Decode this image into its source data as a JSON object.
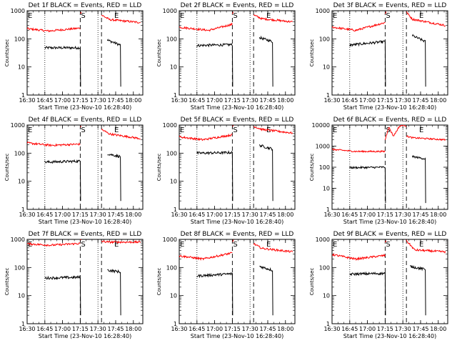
{
  "figure": {
    "ylabel": "Counts/sec",
    "xlabel": "Start Time (23-Nov-10 16:28:40)"
  },
  "chart_data": [
    {
      "type": "line",
      "title": "Det 1f BLACK = Events, RED = LLD",
      "xlabel": "Start Time (23-Nov-10 16:28:40)",
      "ylabel": "Counts/sec",
      "yscale": "log",
      "ylim": [
        1,
        1000
      ],
      "xlim": [
        "16:30",
        "18:08"
      ],
      "xticks": [
        "16:30",
        "16:45",
        "17:00",
        "17:15",
        "17:30",
        "17:45",
        "18:00"
      ],
      "yticks": [
        "1",
        "10",
        "100",
        "1000"
      ],
      "vlines_dotted": [
        "16:45",
        "17:30"
      ],
      "vlines_dashed": [
        "17:15",
        "17:33"
      ],
      "markers": {
        "S": "17:15",
        "E": "17:45"
      },
      "series": [
        {
          "name": "Events",
          "color": "#000000",
          "segments": [
            {
              "x": [
                "16:45",
                "17:15"
              ],
              "y": [
                48,
                48
              ]
            },
            {
              "x": [
                "17:38",
                "17:49"
              ],
              "y": [
                90,
                60
              ]
            }
          ]
        },
        {
          "name": "LLD",
          "color": "#ff0000",
          "segments": [
            {
              "x": [
                "16:30",
                "16:48",
                "17:15"
              ],
              "y": [
                230,
                190,
                240
              ]
            },
            {
              "x": [
                "17:15",
                "17:16"
              ],
              "y": [
                800,
                950
              ]
            },
            {
              "x": [
                "17:33",
                "17:40",
                "18:06"
              ],
              "y": [
                700,
                480,
                380
              ]
            }
          ]
        }
      ]
    },
    {
      "type": "line",
      "title": "Det 2f BLACK = Events, RED = LLD",
      "xlabel": "Start Time (23-Nov-10 16:28:40)",
      "ylabel": "Counts/sec",
      "yscale": "log",
      "ylim": [
        1,
        1000
      ],
      "xlim": [
        "16:30",
        "18:08"
      ],
      "xticks": [
        "16:30",
        "16:45",
        "17:00",
        "17:15",
        "17:30",
        "17:45",
        "18:00"
      ],
      "yticks": [
        "1",
        "10",
        "100",
        "1000"
      ],
      "vlines_dotted": [
        "16:45",
        "17:30"
      ],
      "vlines_dashed": [
        "17:15",
        "17:33"
      ],
      "markers": {
        "S": "17:15",
        "E": "17:45"
      },
      "series": [
        {
          "name": "Events",
          "color": "#000000",
          "segments": [
            {
              "x": [
                "16:45",
                "17:15"
              ],
              "y": [
                58,
                62
              ]
            },
            {
              "x": [
                "17:38",
                "17:49"
              ],
              "y": [
                110,
                80
              ]
            }
          ]
        },
        {
          "name": "LLD",
          "color": "#ff0000",
          "segments": [
            {
              "x": [
                "16:30",
                "16:55",
                "17:15"
              ],
              "y": [
                260,
                200,
                330
              ]
            },
            {
              "x": [
                "17:15",
                "17:16"
              ],
              "y": [
                800,
                950
              ]
            },
            {
              "x": [
                "17:33",
                "17:40",
                "18:06"
              ],
              "y": [
                700,
                520,
                400
              ]
            }
          ]
        }
      ]
    },
    {
      "type": "line",
      "title": "Det 3f BLACK = Events, RED = LLD",
      "xlabel": "Start Time (23-Nov-10 16:28:40)",
      "ylabel": "Counts/sec",
      "yscale": "log",
      "ylim": [
        1,
        1000
      ],
      "xlim": [
        "16:30",
        "18:08"
      ],
      "xticks": [
        "16:30",
        "16:45",
        "17:00",
        "17:15",
        "17:30",
        "17:45",
        "18:00"
      ],
      "yticks": [
        "1",
        "10",
        "100",
        "1000"
      ],
      "vlines_dotted": [
        "16:45",
        "17:30"
      ],
      "vlines_dashed": [
        "17:15",
        "17:33"
      ],
      "markers": {
        "S": "17:15",
        "E": "17:45"
      },
      "series": [
        {
          "name": "Events",
          "color": "#000000",
          "segments": [
            {
              "x": [
                "16:45",
                "17:15"
              ],
              "y": [
                60,
                80
              ]
            },
            {
              "x": [
                "17:38",
                "17:49"
              ],
              "y": [
                130,
                80
              ]
            }
          ]
        },
        {
          "name": "LLD",
          "color": "#ff0000",
          "segments": [
            {
              "x": [
                "16:30",
                "16:50",
                "17:15"
              ],
              "y": [
                260,
                200,
                380
              ]
            },
            {
              "x": [
                "17:15",
                "17:16"
              ],
              "y": [
                800,
                950
              ]
            },
            {
              "x": [
                "17:33",
                "17:38",
                "18:06"
              ],
              "y": [
                900,
                500,
                300
              ]
            }
          ]
        }
      ]
    },
    {
      "type": "line",
      "title": "Det 4f BLACK = Events, RED = LLD",
      "xlabel": "Start Time (23-Nov-10 16:28:40)",
      "ylabel": "Counts/sec",
      "yscale": "log",
      "ylim": [
        1,
        1000
      ],
      "xlim": [
        "16:30",
        "18:08"
      ],
      "xticks": [
        "16:30",
        "16:45",
        "17:00",
        "17:15",
        "17:30",
        "17:45",
        "18:00"
      ],
      "yticks": [
        "1",
        "10",
        "100",
        "1000"
      ],
      "vlines_dotted": [
        "16:45",
        "17:30"
      ],
      "vlines_dashed": [
        "17:15",
        "17:33"
      ],
      "markers": {
        "S": "17:15",
        "E": "17:45"
      },
      "series": [
        {
          "name": "Events",
          "color": "#000000",
          "segments": [
            {
              "x": [
                "16:45",
                "17:15"
              ],
              "y": [
                48,
                52
              ]
            },
            {
              "x": [
                "17:38",
                "17:49"
              ],
              "y": [
                95,
                75
              ]
            }
          ]
        },
        {
          "name": "LLD",
          "color": "#ff0000",
          "segments": [
            {
              "x": [
                "16:30",
                "16:50",
                "17:15"
              ],
              "y": [
                230,
                190,
                210
              ]
            },
            {
              "x": [
                "17:15",
                "17:16"
              ],
              "y": [
                800,
                950
              ]
            },
            {
              "x": [
                "17:33",
                "17:40",
                "18:06"
              ],
              "y": [
                700,
                480,
                330
              ]
            }
          ]
        }
      ]
    },
    {
      "type": "line",
      "title": "Det 5f BLACK = Events, RED = LLD",
      "xlabel": "Start Time (23-Nov-10 16:28:40)",
      "ylabel": "Counts/sec",
      "yscale": "log",
      "ylim": [
        1,
        1000
      ],
      "xlim": [
        "16:30",
        "18:08"
      ],
      "xticks": [
        "16:30",
        "16:45",
        "17:00",
        "17:15",
        "17:30",
        "17:45",
        "18:00"
      ],
      "yticks": [
        "1",
        "10",
        "100",
        "1000"
      ],
      "vlines_dotted": [
        "16:45",
        "17:30"
      ],
      "vlines_dashed": [
        "17:15",
        "17:33"
      ],
      "markers": {
        "S": "17:15",
        "E": "17:45"
      },
      "series": [
        {
          "name": "Events",
          "color": "#000000",
          "segments": [
            {
              "x": [
                "16:45",
                "17:15"
              ],
              "y": [
                100,
                105
              ]
            },
            {
              "x": [
                "17:38",
                "17:49"
              ],
              "y": [
                190,
                140
              ]
            }
          ]
        },
        {
          "name": "LLD",
          "color": "#ff0000",
          "segments": [
            {
              "x": [
                "16:30",
                "16:50",
                "17:15"
              ],
              "y": [
                380,
                300,
                450
              ]
            },
            {
              "x": [
                "17:15",
                "17:16"
              ],
              "y": [
                900,
                980
              ]
            },
            {
              "x": [
                "17:33",
                "17:40",
                "18:06"
              ],
              "y": [
                900,
                700,
                520
              ]
            }
          ]
        }
      ]
    },
    {
      "type": "line",
      "title": "Det 6f BLACK = Events, RED = LLD",
      "xlabel": "Start Time (23-Nov-10 16:28:40)",
      "ylabel": "Counts/sec",
      "yscale": "log",
      "ylim": [
        1,
        10000
      ],
      "xlim": [
        "16:30",
        "18:08"
      ],
      "xticks": [
        "16:30",
        "16:45",
        "17:00",
        "17:15",
        "17:30",
        "17:45",
        "18:00"
      ],
      "yticks": [
        "1",
        "10",
        "100",
        "1000",
        "10000"
      ],
      "vlines_dotted": [
        "16:45",
        "17:30"
      ],
      "vlines_dashed": [
        "17:15",
        "17:33"
      ],
      "markers": {
        "S": "17:15",
        "E": "17:45"
      },
      "series": [
        {
          "name": "Events",
          "color": "#000000",
          "segments": [
            {
              "x": [
                "16:45",
                "17:15"
              ],
              "y": [
                95,
                100
              ]
            },
            {
              "x": [
                "17:38",
                "17:49"
              ],
              "y": [
                320,
                250
              ]
            }
          ]
        },
        {
          "name": "LLD",
          "color": "#ff0000",
          "segments": [
            {
              "x": [
                "16:30",
                "16:50",
                "17:15"
              ],
              "y": [
                700,
                560,
                560
              ]
            },
            {
              "x": [
                "17:15",
                "17:18",
                "17:22",
                "17:27",
                "17:30",
                "17:33"
              ],
              "y": [
                2000,
                8000,
                3000,
                8500,
                10000,
                9000
              ]
            },
            {
              "x": [
                "17:33",
                "17:38",
                "18:06"
              ],
              "y": [
                3000,
                2500,
                2000
              ]
            }
          ]
        }
      ]
    },
    {
      "type": "line",
      "title": "Det 7f BLACK = Events, RED = LLD",
      "xlabel": "Start Time (23-Nov-10 16:28:40)",
      "ylabel": "Counts/sec",
      "yscale": "log",
      "ylim": [
        1,
        1000
      ],
      "xlim": [
        "16:30",
        "18:08"
      ],
      "xticks": [
        "16:30",
        "16:45",
        "17:00",
        "17:15",
        "17:30",
        "17:45",
        "18:00"
      ],
      "yticks": [
        "1",
        "10",
        "100",
        "1000"
      ],
      "vlines_dotted": [
        "16:45",
        "17:30"
      ],
      "vlines_dashed": [
        "17:15",
        "17:33"
      ],
      "markers": {
        "S": "17:15",
        "E": "17:45"
      },
      "series": [
        {
          "name": "Events",
          "color": "#000000",
          "segments": [
            {
              "x": [
                "16:45",
                "17:15"
              ],
              "y": [
                42,
                45
              ]
            },
            {
              "x": [
                "17:38",
                "17:49"
              ],
              "y": [
                80,
                70
              ]
            }
          ]
        },
        {
          "name": "LLD",
          "color": "#ff0000",
          "segments": [
            {
              "x": [
                "16:30",
                "16:50",
                "17:15"
              ],
              "y": [
                700,
                620,
                720
              ]
            },
            {
              "x": [
                "17:15",
                "17:16"
              ],
              "y": [
                900,
                980
              ]
            },
            {
              "x": [
                "17:33",
                "17:40",
                "18:06"
              ],
              "y": [
                850,
                800,
                800
              ]
            }
          ]
        }
      ]
    },
    {
      "type": "line",
      "title": "Det 8f BLACK = Events, RED = LLD",
      "xlabel": "Start Time (23-Nov-10 16:28:40)",
      "ylabel": "Counts/sec",
      "yscale": "log",
      "ylim": [
        1,
        1000
      ],
      "xlim": [
        "16:30",
        "18:08"
      ],
      "xticks": [
        "16:30",
        "16:45",
        "17:00",
        "17:15",
        "17:30",
        "17:45",
        "18:00"
      ],
      "yticks": [
        "1",
        "10",
        "100",
        "1000"
      ],
      "vlines_dotted": [
        "16:45",
        "17:30"
      ],
      "vlines_dashed": [
        "17:15",
        "17:33"
      ],
      "markers": {
        "S": "17:15",
        "E": "17:45"
      },
      "series": [
        {
          "name": "Events",
          "color": "#000000",
          "segments": [
            {
              "x": [
                "16:45",
                "17:15"
              ],
              "y": [
                50,
                60
              ]
            },
            {
              "x": [
                "17:38",
                "17:49"
              ],
              "y": [
                110,
                80
              ]
            }
          ]
        },
        {
          "name": "LLD",
          "color": "#ff0000",
          "segments": [
            {
              "x": [
                "16:30",
                "16:50",
                "17:15"
              ],
              "y": [
                260,
                200,
                330
              ]
            },
            {
              "x": [
                "17:15",
                "17:16"
              ],
              "y": [
                800,
                950
              ]
            },
            {
              "x": [
                "17:33",
                "17:40",
                "18:06"
              ],
              "y": [
                700,
                480,
                360
              ]
            }
          ]
        }
      ]
    },
    {
      "type": "line",
      "title": "Det 9f BLACK = Events, RED = LLD",
      "xlabel": "Start Time (23-Nov-10 16:28:40)",
      "ylabel": "Counts/sec",
      "yscale": "log",
      "ylim": [
        1,
        1000
      ],
      "xlim": [
        "16:30",
        "18:08"
      ],
      "xticks": [
        "16:30",
        "16:45",
        "17:00",
        "17:15",
        "17:30",
        "17:45",
        "18:00"
      ],
      "yticks": [
        "1",
        "10",
        "100",
        "1000"
      ],
      "vlines_dotted": [
        "16:45",
        "17:30"
      ],
      "vlines_dashed": [
        "17:15",
        "17:33"
      ],
      "markers": {
        "S": "17:15",
        "E": "17:45"
      },
      "series": [
        {
          "name": "Events",
          "color": "#000000",
          "segments": [
            {
              "x": [
                "16:45",
                "17:15"
              ],
              "y": [
                58,
                62
              ]
            },
            {
              "x": [
                "17:36",
                "17:49"
              ],
              "y": [
                110,
                85
              ]
            }
          ]
        },
        {
          "name": "LLD",
          "color": "#ff0000",
          "segments": [
            {
              "x": [
                "16:30",
                "16:50",
                "17:15"
              ],
              "y": [
                290,
                200,
                270
              ]
            },
            {
              "x": [
                "17:15",
                "17:16"
              ],
              "y": [
                800,
                950
              ]
            },
            {
              "x": [
                "17:33",
                "17:40",
                "18:06"
              ],
              "y": [
                900,
                420,
                360
              ]
            }
          ]
        }
      ]
    }
  ]
}
